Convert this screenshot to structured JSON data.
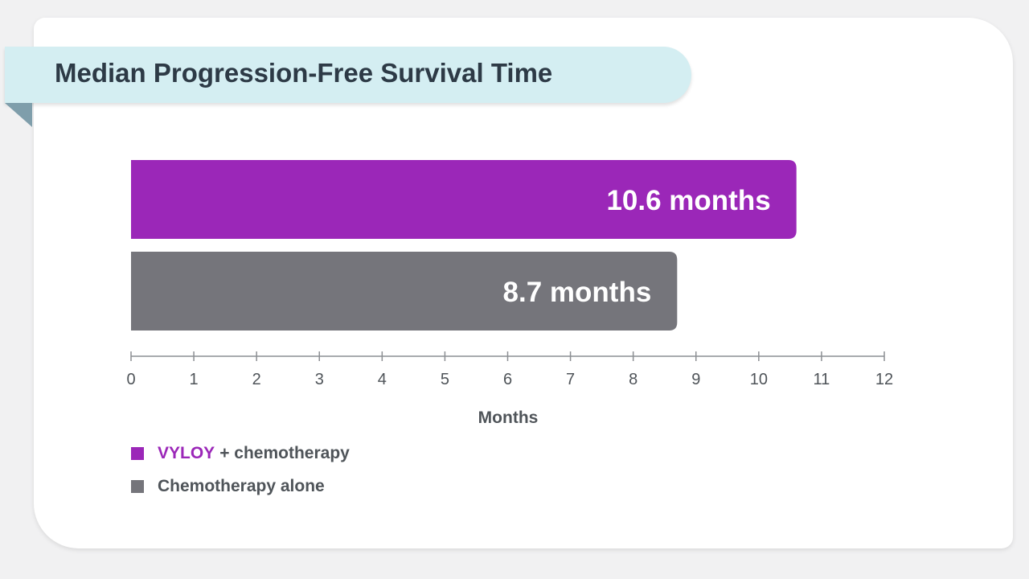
{
  "chart_data": {
    "type": "bar",
    "orientation": "horizontal",
    "title": "Median Progression-Free Survival Time",
    "xlabel": "Months",
    "ylabel": "",
    "xlim": [
      0,
      12
    ],
    "ticks": [
      "0",
      "1",
      "2",
      "3",
      "4",
      "5",
      "6",
      "7",
      "8",
      "9",
      "10",
      "11",
      "12"
    ],
    "series": [
      {
        "name": "VYLOY + chemotherapy",
        "value": 10.6,
        "label": "10.6 months",
        "color": "#9b27b8"
      },
      {
        "name": "Chemotherapy alone",
        "value": 8.7,
        "label": "8.7 months",
        "color": "#75757b"
      }
    ],
    "grid": false,
    "legend_position": "bottom-left"
  },
  "legend": {
    "items": [
      {
        "brand": "VYLOY",
        "text": "+ chemotherapy",
        "color": "#9b27b8"
      },
      {
        "brand": "",
        "text": "Chemotherapy alone",
        "color": "#75757b"
      }
    ]
  },
  "colors": {
    "banner": "#d4eef2",
    "title_text": "#2d3a46",
    "axis": "#8c8f93"
  }
}
